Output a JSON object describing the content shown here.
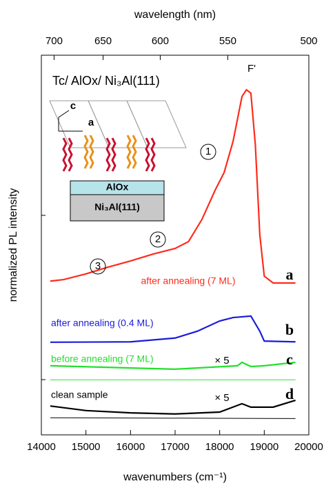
{
  "chart_data": {
    "type": "line",
    "x_label": "wavenumbers (cm⁻¹)",
    "top_label": "wavelength (nm)",
    "y_label": "normalized PL intensity",
    "xlim": [
      14000,
      20000
    ],
    "xticks": [
      14000,
      15000,
      16000,
      17000,
      18000,
      19000,
      20000
    ],
    "top_ticks": [
      700,
      650,
      600,
      550,
      500
    ],
    "ylim": [
      0,
      1
    ],
    "series": [
      {
        "name": "after annealing (7 ML)",
        "color": "#ff2a1a",
        "x": [
          14200,
          14500,
          15000,
          15500,
          16000,
          16500,
          17000,
          17300,
          17600,
          17900,
          18100,
          18300,
          18500,
          18600,
          18700,
          18800,
          18900,
          19000,
          19200,
          19700
        ],
        "values": [
          0.405,
          0.409,
          0.424,
          0.442,
          0.458,
          0.476,
          0.491,
          0.509,
          0.567,
          0.645,
          0.691,
          0.773,
          0.891,
          0.909,
          0.9,
          0.764,
          0.527,
          0.418,
          0.4,
          0.4
        ]
      },
      {
        "name": "after annealing (0.4 ML)",
        "color": "#1a1adb",
        "x": [
          14200,
          16000,
          17000,
          17500,
          18000,
          18300,
          18700,
          18900,
          19000,
          19700
        ],
        "values": [
          0.244,
          0.245,
          0.255,
          0.273,
          0.3,
          0.309,
          0.313,
          0.273,
          0.247,
          0.245
        ]
      },
      {
        "name": "before annealing (7 ML)",
        "color": "#22e02a",
        "x": [
          14200,
          17000,
          18400,
          18500,
          18700,
          19000,
          19700
        ],
        "values": [
          0.182,
          0.173,
          0.182,
          0.191,
          0.18,
          0.182,
          0.191
        ]
      },
      {
        "color": "#22e02a",
        "x": [
          14200,
          19700
        ],
        "values": [
          0.145,
          0.145
        ]
      },
      {
        "name": "clean sample",
        "color": "#000000",
        "x": [
          14200,
          15000,
          16000,
          17000,
          18000,
          18500,
          18700,
          19200,
          19700
        ],
        "values": [
          0.076,
          0.064,
          0.058,
          0.055,
          0.06,
          0.082,
          0.073,
          0.073,
          0.091
        ]
      },
      {
        "color": "#000000",
        "x": [
          14200,
          19700
        ],
        "values": [
          0.045,
          0.043
        ]
      }
    ],
    "annotations": [
      "Tc/ AlOx/ Ni₃Al(111)",
      "F'",
      "1",
      "2",
      "3",
      "a",
      "b",
      "c",
      "d",
      "× 5",
      "× 5",
      "AlOx",
      "Ni₃Al(111)",
      "c",
      "a"
    ]
  }
}
